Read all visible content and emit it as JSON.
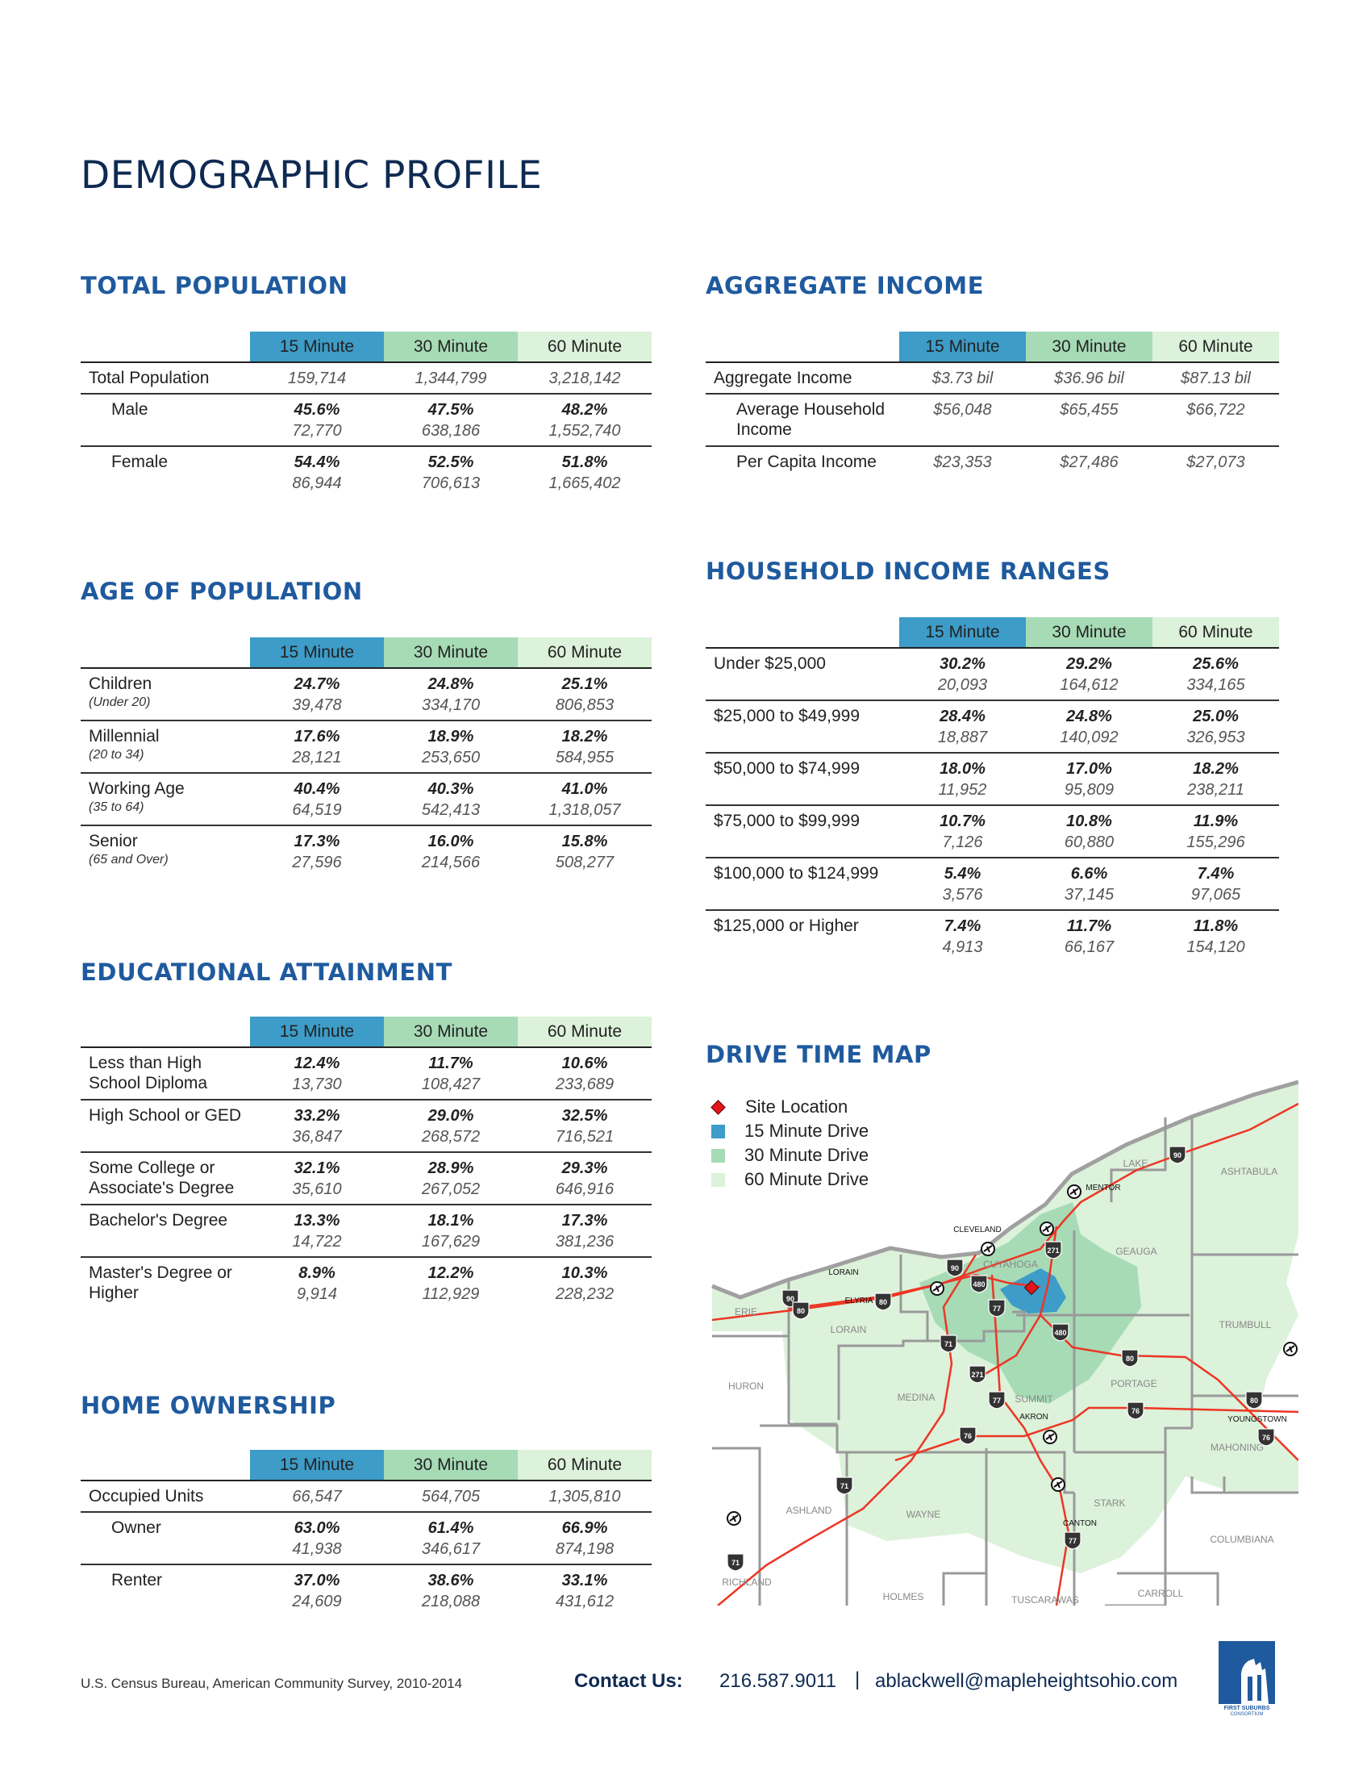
{
  "title": "DEMOGRAPHIC PROFILE",
  "column_headers": [
    "15 Minute",
    "30 Minute",
    "60 Minute"
  ],
  "colors": {
    "heading": "#1f5a9e",
    "title": "#0e2a52",
    "min15": "#3d9cc8",
    "min30": "#a6dbb6",
    "min60": "#dcf2da",
    "site": "#e0161b",
    "roads": "#ee3524"
  },
  "sections": {
    "total_population": {
      "title": "TOTAL POPULATION",
      "rows": [
        {
          "label": "Total Population",
          "values": [
            "159,714",
            "1,344,799",
            "3,218,142"
          ]
        },
        {
          "label": "Male",
          "indent": true,
          "pct": [
            "45.6%",
            "47.5%",
            "48.2%"
          ],
          "values": [
            "72,770",
            "638,186",
            "1,552,740"
          ]
        },
        {
          "label": "Female",
          "indent": true,
          "pct": [
            "54.4%",
            "52.5%",
            "51.8%"
          ],
          "values": [
            "86,944",
            "706,613",
            "1,665,402"
          ]
        }
      ]
    },
    "age_of_population": {
      "title": "AGE OF POPULATION",
      "rows": [
        {
          "label": "Children",
          "sublabel": "(Under 20)",
          "pct": [
            "24.7%",
            "24.8%",
            "25.1%"
          ],
          "values": [
            "39,478",
            "334,170",
            "806,853"
          ]
        },
        {
          "label": "Millennial",
          "sublabel": "(20 to 34)",
          "pct": [
            "17.6%",
            "18.9%",
            "18.2%"
          ],
          "values": [
            "28,121",
            "253,650",
            "584,955"
          ]
        },
        {
          "label": "Working Age",
          "sublabel": "(35 to 64)",
          "pct": [
            "40.4%",
            "40.3%",
            "41.0%"
          ],
          "values": [
            "64,519",
            "542,413",
            "1,318,057"
          ]
        },
        {
          "label": "Senior",
          "sublabel": "(65 and Over)",
          "pct": [
            "17.3%",
            "16.0%",
            "15.8%"
          ],
          "values": [
            "27,596",
            "214,566",
            "508,277"
          ]
        }
      ]
    },
    "educational_attainment": {
      "title": "EDUCATIONAL ATTAINMENT",
      "rows": [
        {
          "label": "Less than High School Diploma",
          "pct": [
            "12.4%",
            "11.7%",
            "10.6%"
          ],
          "values": [
            "13,730",
            "108,427",
            "233,689"
          ]
        },
        {
          "label": "High School or GED",
          "pct": [
            "33.2%",
            "29.0%",
            "32.5%"
          ],
          "values": [
            "36,847",
            "268,572",
            "716,521"
          ]
        },
        {
          "label": "Some College or Associate's Degree",
          "pct": [
            "32.1%",
            "28.9%",
            "29.3%"
          ],
          "values": [
            "35,610",
            "267,052",
            "646,916"
          ]
        },
        {
          "label": "Bachelor's Degree",
          "pct": [
            "13.3%",
            "18.1%",
            "17.3%"
          ],
          "values": [
            "14,722",
            "167,629",
            "381,236"
          ]
        },
        {
          "label": "Master's Degree or Higher",
          "pct": [
            "8.9%",
            "12.2%",
            "10.3%"
          ],
          "values": [
            "9,914",
            "112,929",
            "228,232"
          ]
        }
      ]
    },
    "home_ownership": {
      "title": "HOME OWNERSHIP",
      "rows": [
        {
          "label": "Occupied Units",
          "values": [
            "66,547",
            "564,705",
            "1,305,810"
          ]
        },
        {
          "label": "Owner",
          "indent": true,
          "pct": [
            "63.0%",
            "61.4%",
            "66.9%"
          ],
          "values": [
            "41,938",
            "346,617",
            "874,198"
          ]
        },
        {
          "label": "Renter",
          "indent": true,
          "pct": [
            "37.0%",
            "38.6%",
            "33.1%"
          ],
          "values": [
            "24,609",
            "218,088",
            "431,612"
          ]
        }
      ]
    },
    "aggregate_income": {
      "title": "AGGREGATE INCOME",
      "rows": [
        {
          "label": "Aggregate Income",
          "values": [
            "$3.73 bil",
            "$36.96 bil",
            "$87.13 bil"
          ]
        },
        {
          "label": "Average Household Income",
          "indent": true,
          "tall": true,
          "values": [
            "$56,048",
            "$65,455",
            "$66,722"
          ]
        },
        {
          "label": "Per Capita Income",
          "indent": true,
          "values": [
            "$23,353",
            "$27,486",
            "$27,073"
          ]
        }
      ]
    },
    "household_income_ranges": {
      "title": "HOUSEHOLD INCOME RANGES",
      "rows": [
        {
          "label": "Under $25,000",
          "pct": [
            "30.2%",
            "29.2%",
            "25.6%"
          ],
          "values": [
            "20,093",
            "164,612",
            "334,165"
          ]
        },
        {
          "label": "$25,000 to $49,999",
          "pct": [
            "28.4%",
            "24.8%",
            "25.0%"
          ],
          "values": [
            "18,887",
            "140,092",
            "326,953"
          ]
        },
        {
          "label": "$50,000 to $74,999",
          "pct": [
            "18.0%",
            "17.0%",
            "18.2%"
          ],
          "values": [
            "11,952",
            "95,809",
            "238,211"
          ]
        },
        {
          "label": "$75,000 to $99,999",
          "pct": [
            "10.7%",
            "10.8%",
            "11.9%"
          ],
          "values": [
            "7,126",
            "60,880",
            "155,296"
          ]
        },
        {
          "label": "$100,000 to $124,999",
          "pct": [
            "5.4%",
            "6.6%",
            "7.4%"
          ],
          "values": [
            "3,576",
            "37,145",
            "97,065"
          ]
        },
        {
          "label": "$125,000 or Higher",
          "pct": [
            "7.4%",
            "11.7%",
            "11.8%"
          ],
          "values": [
            "4,913",
            "66,167",
            "154,120"
          ]
        }
      ]
    }
  },
  "drive_time_map": {
    "title": "DRIVE TIME MAP",
    "legend": [
      "Site Location",
      "15 Minute Drive",
      "30 Minute Drive",
      "60 Minute Drive"
    ],
    "places": [
      "CLEVELAND",
      "LORAIN",
      "ELYRIA",
      "MENTOR",
      "LAKE",
      "ASHTABULA",
      "GEAUGA",
      "CUYAHOGA",
      "ERIE",
      "LORAIN",
      "TRUMBULL",
      "HURON",
      "MEDINA",
      "SUMMIT",
      "PORTAGE",
      "AKRON",
      "YOUNGSTOWN",
      "MAHONING",
      "ASHLAND",
      "WAYNE",
      "STARK",
      "CANTON",
      "COLUMBIANA",
      "RICHLAND",
      "HOLMES",
      "TUSCARAWAS",
      "CARROLL"
    ],
    "shields": [
      "90",
      "90",
      "90",
      "271",
      "480",
      "80",
      "80",
      "77",
      "71",
      "480",
      "80",
      "271",
      "77",
      "76",
      "76",
      "80",
      "76",
      "71",
      "77",
      "71"
    ]
  },
  "footer": {
    "source": "U.S. Census Bureau, American Community Survey, 2010-2014",
    "contact_label": "Contact Us:",
    "phone": "216.587.9011",
    "separator": "|",
    "email": "ablackwell@mapleheightsohio.com",
    "logo_text": "FIRST SUBURBS CONSORTIUM"
  }
}
